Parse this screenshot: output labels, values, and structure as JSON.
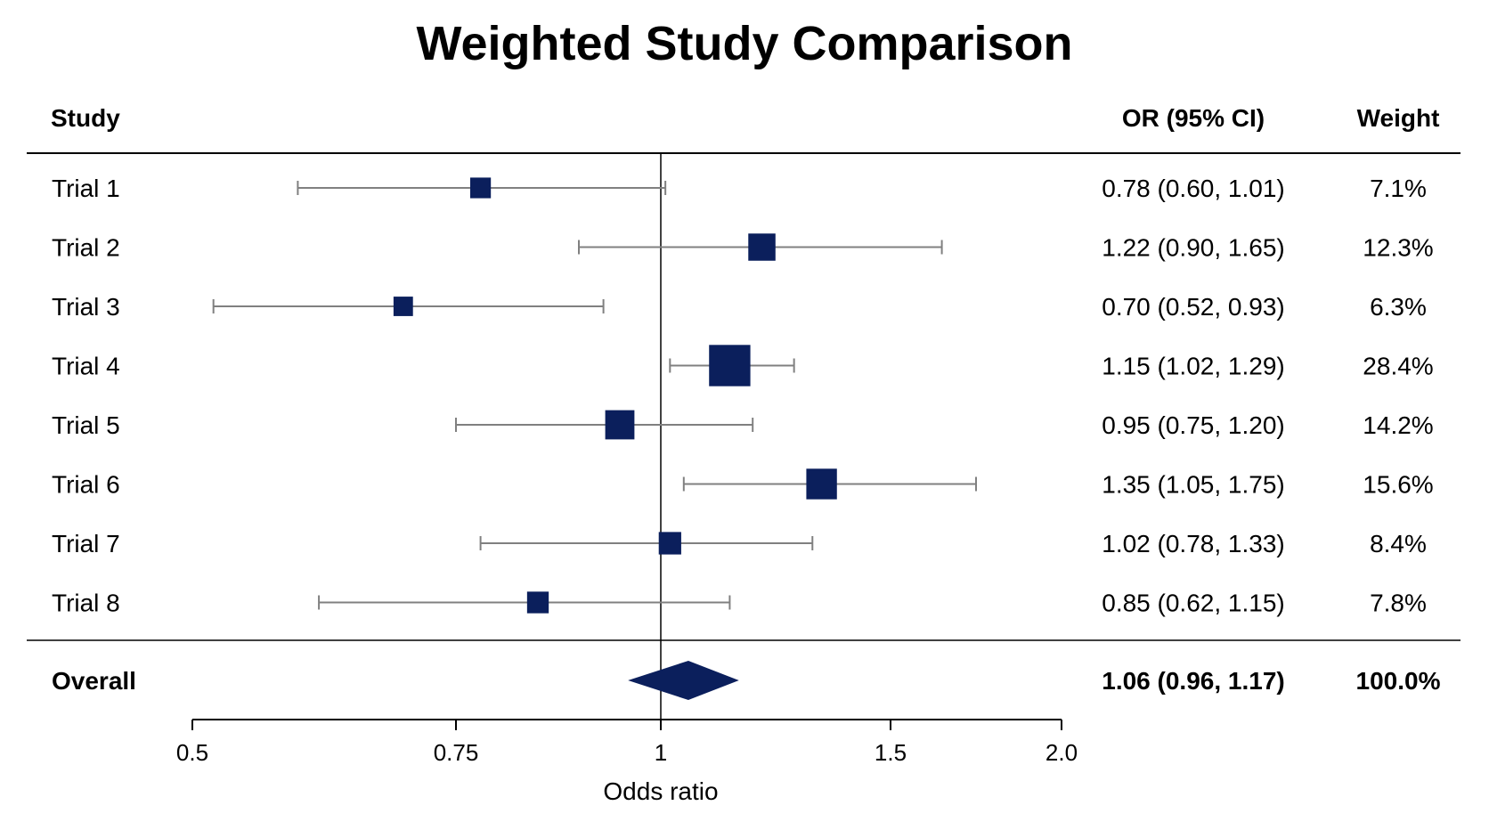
{
  "chart_data": {
    "type": "forest",
    "title": "Weighted Study Comparison",
    "columns": {
      "study": "Study",
      "ci": "OR (95% CI)",
      "weight": "Weight"
    },
    "xlabel": "Odds ratio",
    "xlim": [
      0.5,
      2.0
    ],
    "ticks": [
      {
        "value": 0.5,
        "label": "0.5"
      },
      {
        "value": 0.75,
        "label": "0.75"
      },
      {
        "value": 1,
        "label": "1"
      },
      {
        "value": 1.5,
        "label": "1.5"
      },
      {
        "value": 2.0,
        "label": "2.0"
      }
    ],
    "reference_line": 1,
    "colors": {
      "marker": "#0b1f5c",
      "ci_line": "#808080",
      "axis": "#000000"
    },
    "studies": [
      {
        "label": "Trial 1",
        "or": 0.78,
        "lo": 0.6,
        "hi": 1.01,
        "ci_text": "0.78 (0.60, 1.01)",
        "weight": 7.1,
        "weight_text": "7.1%"
      },
      {
        "label": "Trial 2",
        "or": 1.22,
        "lo": 0.9,
        "hi": 1.65,
        "ci_text": "1.22 (0.90, 1.65)",
        "weight": 12.3,
        "weight_text": "12.3%"
      },
      {
        "label": "Trial 3",
        "or": 0.7,
        "lo": 0.52,
        "hi": 0.93,
        "ci_text": "0.70 (0.52, 0.93)",
        "weight": 6.3,
        "weight_text": "6.3%"
      },
      {
        "label": "Trial 4",
        "or": 1.15,
        "lo": 1.02,
        "hi": 1.29,
        "ci_text": "1.15 (1.02, 1.29)",
        "weight": 28.4,
        "weight_text": "28.4%"
      },
      {
        "label": "Trial 5",
        "or": 0.95,
        "lo": 0.75,
        "hi": 1.2,
        "ci_text": "0.95 (0.75, 1.20)",
        "weight": 14.2,
        "weight_text": "14.2%"
      },
      {
        "label": "Trial 6",
        "or": 1.35,
        "lo": 1.05,
        "hi": 1.75,
        "ci_text": "1.35 (1.05, 1.75)",
        "weight": 15.6,
        "weight_text": "15.6%"
      },
      {
        "label": "Trial 7",
        "or": 1.02,
        "lo": 0.78,
        "hi": 1.33,
        "ci_text": "1.02 (0.78, 1.33)",
        "weight": 8.4,
        "weight_text": "8.4%"
      },
      {
        "label": "Trial 8",
        "or": 0.85,
        "lo": 0.62,
        "hi": 1.15,
        "ci_text": "0.85 (0.62, 1.15)",
        "weight": 7.8,
        "weight_text": "7.8%"
      }
    ],
    "overall": {
      "label": "Overall",
      "or": 1.06,
      "lo": 0.96,
      "hi": 1.17,
      "ci_text": "1.06 (0.96, 1.17)",
      "weight_text": "100.0%"
    }
  }
}
